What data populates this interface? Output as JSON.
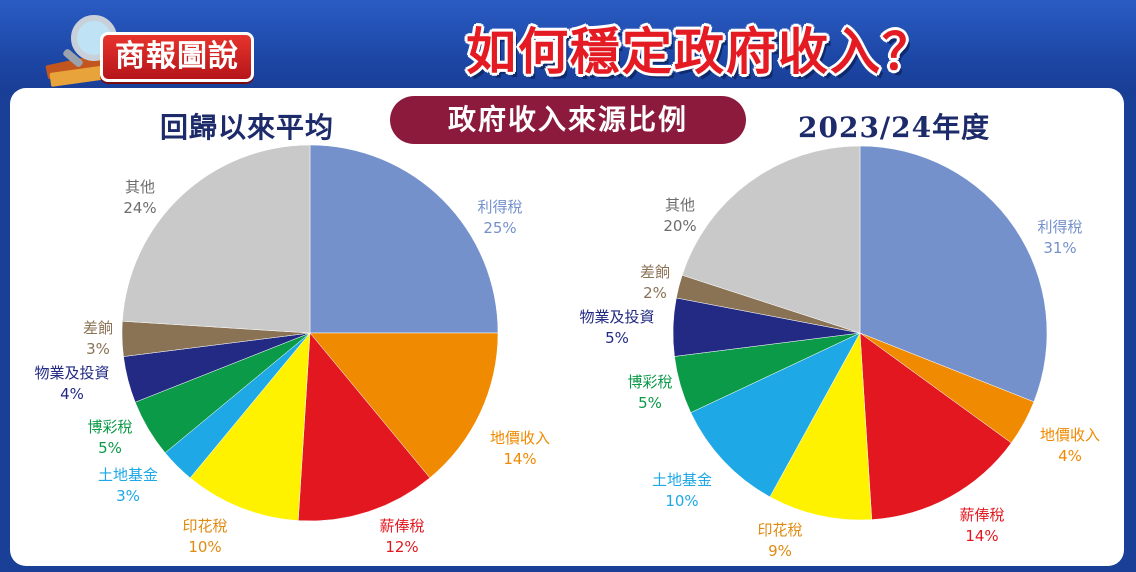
{
  "brand": "商報圖說",
  "headline": "如何穩定政府收入？",
  "subtitle": "政府收入來源比例",
  "colors": {
    "profits_tax": "#7591cc",
    "land_premium": "#f08a00",
    "salaries_tax": "#e3171f",
    "stamp_duty": "#fff200",
    "land_fund": "#1ea8e6",
    "betting_duty": "#0b9a48",
    "properties_investments": "#222a84",
    "surplus": "#8a7255",
    "others": "#c9c9c9"
  },
  "chart_data": [
    {
      "type": "pie",
      "title": "回歸以來平均",
      "slices": [
        {
          "key": "profits_tax",
          "label": "利得稅",
          "value": 25,
          "pct": "25%"
        },
        {
          "key": "land_premium",
          "label": "地價收入",
          "value": 14,
          "pct": "14%"
        },
        {
          "key": "salaries_tax",
          "label": "薪俸稅",
          "value": 12,
          "pct": "12%"
        },
        {
          "key": "stamp_duty",
          "label": "印花稅",
          "value": 10,
          "pct": "10%"
        },
        {
          "key": "land_fund",
          "label": "土地基金",
          "value": 3,
          "pct": "3%"
        },
        {
          "key": "betting_duty",
          "label": "博彩稅",
          "value": 5,
          "pct": "5%"
        },
        {
          "key": "properties_investments",
          "label": "物業及投資",
          "value": 4,
          "pct": "4%"
        },
        {
          "key": "surplus",
          "label": "差餉",
          "value": 3,
          "pct": "3%"
        },
        {
          "key": "others",
          "label": "其他",
          "value": 24,
          "pct": "24%"
        }
      ]
    },
    {
      "type": "pie",
      "title": "2023/24年度",
      "slices": [
        {
          "key": "profits_tax",
          "label": "利得稅",
          "value": 31,
          "pct": "31%"
        },
        {
          "key": "land_premium",
          "label": "地價收入",
          "value": 4,
          "pct": "4%"
        },
        {
          "key": "salaries_tax",
          "label": "薪俸稅",
          "value": 14,
          "pct": "14%"
        },
        {
          "key": "stamp_duty",
          "label": "印花稅",
          "value": 9,
          "pct": "9%"
        },
        {
          "key": "land_fund",
          "label": "土地基金",
          "value": 10,
          "pct": "10%"
        },
        {
          "key": "betting_duty",
          "label": "博彩稅",
          "value": 5,
          "pct": "5%"
        },
        {
          "key": "properties_investments",
          "label": "物業及投資",
          "value": 5,
          "pct": "5%"
        },
        {
          "key": "surplus",
          "label": "差餉",
          "value": 2,
          "pct": "2%"
        },
        {
          "key": "others",
          "label": "其他",
          "value": 20,
          "pct": "20%"
        }
      ]
    }
  ]
}
